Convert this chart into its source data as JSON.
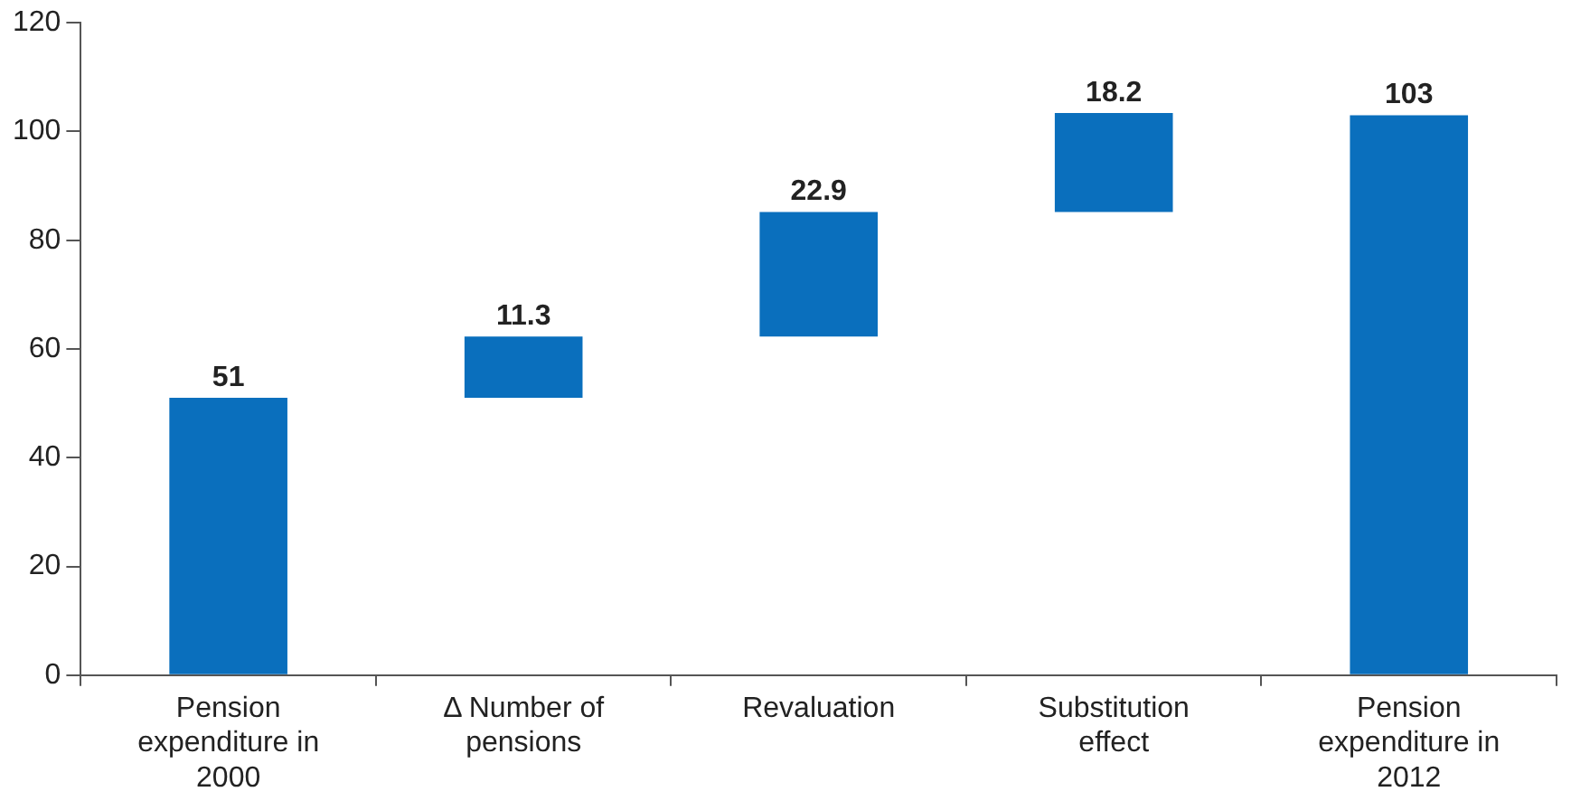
{
  "chart_data": {
    "type": "bar",
    "categories": [
      "Pension expenditure in 2000",
      "Δ Number of pensions",
      "Revaluation",
      "Substitution effect",
      "Pension expenditure in 2012"
    ],
    "values": [
      51,
      11.3,
      22.9,
      18.2,
      103
    ],
    "base": [
      0,
      51,
      62.3,
      85.2,
      0
    ],
    "color": "#0a6fbd",
    "ylim": [
      0,
      120
    ],
    "yticks": [
      0,
      20,
      40,
      60,
      80,
      100,
      120
    ],
    "grid": false,
    "legend": false,
    "data_labels": true
  }
}
